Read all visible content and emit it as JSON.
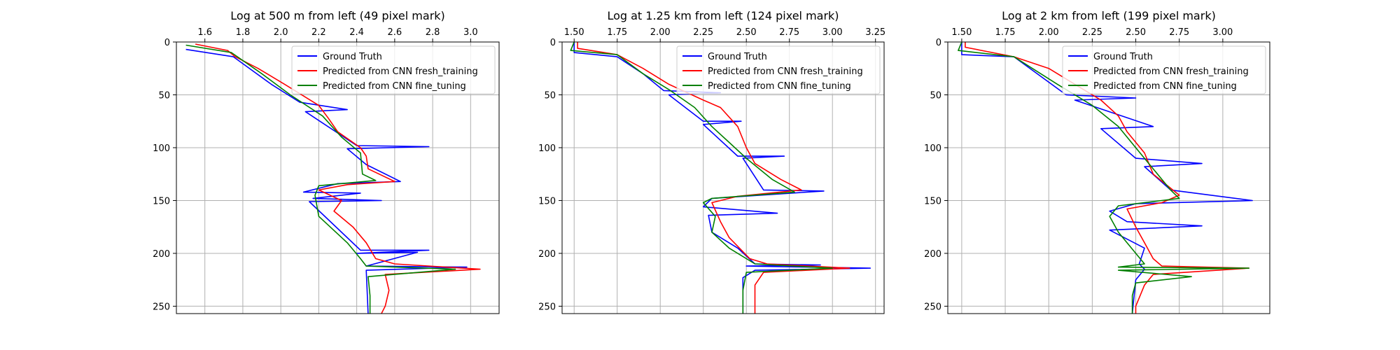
{
  "chart_data": [
    {
      "type": "line",
      "title": "Log at 500 m from left (49 pixel mark)",
      "x_axis_position": "top",
      "y_inverted": true,
      "xlim": [
        1.45,
        3.15
      ],
      "ylim": [
        0,
        257
      ],
      "xticks": [
        1.6,
        1.8,
        2.0,
        2.2,
        2.4,
        2.6,
        2.8,
        3.0
      ],
      "xtick_labels": [
        "1.6",
        "1.8",
        "2.0",
        "2.2",
        "2.4",
        "2.6",
        "2.8",
        "3.0"
      ],
      "yticks": [
        0,
        50,
        100,
        150,
        200,
        250
      ],
      "ytick_labels": [
        "0",
        "50",
        "100",
        "150",
        "200",
        "250"
      ],
      "grid": true,
      "legend_position": "top-right",
      "series": [
        {
          "name": "Ground Truth",
          "color": "#0000ff",
          "points": [
            [
              1.5,
              7
            ],
            [
              1.75,
              14
            ],
            [
              1.95,
              40
            ],
            [
              2.1,
              57
            ],
            [
              2.35,
              64
            ],
            [
              2.13,
              66
            ],
            [
              2.4,
              98
            ],
            [
              2.78,
              99
            ],
            [
              2.35,
              101
            ],
            [
              2.45,
              116
            ],
            [
              2.63,
              132
            ],
            [
              2.3,
              134
            ],
            [
              2.12,
              142
            ],
            [
              2.42,
              143
            ],
            [
              2.17,
              148
            ],
            [
              2.53,
              150
            ],
            [
              2.15,
              151
            ],
            [
              2.42,
              197
            ],
            [
              2.78,
              197
            ],
            [
              2.4,
              200
            ],
            [
              2.72,
              199
            ],
            [
              2.45,
              212
            ],
            [
              2.98,
              213
            ],
            [
              2.45,
              216
            ],
            [
              2.46,
              257
            ]
          ]
        },
        {
          "name": "Predicted from CNN fresh_training",
          "color": "#ff0000",
          "points": [
            [
              1.55,
              2
            ],
            [
              1.72,
              8
            ],
            [
              1.76,
              14
            ],
            [
              1.88,
              25
            ],
            [
              2.02,
              40
            ],
            [
              2.2,
              60
            ],
            [
              2.25,
              72
            ],
            [
              2.3,
              85
            ],
            [
              2.42,
              100
            ],
            [
              2.45,
              108
            ],
            [
              2.46,
              120
            ],
            [
              2.6,
              132
            ],
            [
              2.35,
              135
            ],
            [
              2.2,
              140
            ],
            [
              2.32,
              150
            ],
            [
              2.28,
              160
            ],
            [
              2.38,
              175
            ],
            [
              2.45,
              190
            ],
            [
              2.5,
              205
            ],
            [
              2.6,
              210
            ],
            [
              3.05,
              215
            ],
            [
              2.55,
              220
            ],
            [
              2.57,
              235
            ],
            [
              2.55,
              250
            ],
            [
              2.53,
              257
            ]
          ]
        },
        {
          "name": "Predicted from CNN fine_tuning",
          "color": "#008000",
          "points": [
            [
              1.5,
              3
            ],
            [
              1.74,
              10
            ],
            [
              1.9,
              30
            ],
            [
              2.05,
              50
            ],
            [
              2.22,
              70
            ],
            [
              2.32,
              90
            ],
            [
              2.42,
              105
            ],
            [
              2.43,
              125
            ],
            [
              2.5,
              131
            ],
            [
              2.2,
              136
            ],
            [
              2.18,
              145
            ],
            [
              2.2,
              165
            ],
            [
              2.35,
              190
            ],
            [
              2.42,
              205
            ],
            [
              2.45,
              212
            ],
            [
              2.92,
              215
            ],
            [
              2.46,
              222
            ],
            [
              2.47,
              240
            ],
            [
              2.47,
              257
            ]
          ]
        }
      ]
    },
    {
      "type": "line",
      "title": "Log at 1.25 km from left (124 pixel mark)",
      "x_axis_position": "top",
      "y_inverted": true,
      "xlim": [
        1.43,
        3.3
      ],
      "ylim": [
        0,
        257
      ],
      "xticks": [
        1.5,
        1.75,
        2.0,
        2.25,
        2.5,
        2.75,
        3.0,
        3.25
      ],
      "xtick_labels": [
        "1.50",
        "1.75",
        "2.00",
        "2.25",
        "2.50",
        "2.75",
        "3.00",
        "3.25"
      ],
      "yticks": [
        0,
        50,
        100,
        150,
        200,
        250
      ],
      "ytick_labels": [
        "0",
        "50",
        "100",
        "150",
        "200",
        "250"
      ],
      "grid": true,
      "legend_position": "top-right",
      "series": [
        {
          "name": "Ground Truth",
          "color": "#0000ff",
          "points": [
            [
              1.5,
              0
            ],
            [
              1.5,
              10
            ],
            [
              1.75,
              14
            ],
            [
              1.9,
              30
            ],
            [
              2.02,
              46
            ],
            [
              2.35,
              48
            ],
            [
              2.05,
              50
            ],
            [
              2.25,
              75
            ],
            [
              2.47,
              75
            ],
            [
              2.25,
              78
            ],
            [
              2.45,
              108
            ],
            [
              2.72,
              108
            ],
            [
              2.48,
              110
            ],
            [
              2.6,
              140
            ],
            [
              2.95,
              141
            ],
            [
              2.3,
              148
            ],
            [
              2.25,
              156
            ],
            [
              2.68,
              162
            ],
            [
              2.28,
              164
            ],
            [
              2.3,
              180
            ],
            [
              2.45,
              195
            ],
            [
              2.55,
              210
            ],
            [
              2.93,
              211
            ],
            [
              2.5,
              212
            ],
            [
              3.22,
              214
            ],
            [
              2.55,
              216
            ],
            [
              2.48,
              223
            ],
            [
              2.48,
              257
            ]
          ]
        },
        {
          "name": "Predicted from CNN fresh_training",
          "color": "#ff0000",
          "points": [
            [
              1.52,
              0
            ],
            [
              1.52,
              6
            ],
            [
              1.75,
              12
            ],
            [
              1.9,
              25
            ],
            [
              2.05,
              40
            ],
            [
              2.25,
              55
            ],
            [
              2.35,
              62
            ],
            [
              2.45,
              80
            ],
            [
              2.5,
              100
            ],
            [
              2.55,
              115
            ],
            [
              2.7,
              130
            ],
            [
              2.82,
              140
            ],
            [
              2.45,
              146
            ],
            [
              2.3,
              152
            ],
            [
              2.35,
              170
            ],
            [
              2.4,
              185
            ],
            [
              2.52,
              205
            ],
            [
              2.62,
              210
            ],
            [
              3.1,
              214
            ],
            [
              2.6,
              218
            ],
            [
              2.55,
              230
            ],
            [
              2.55,
              250
            ],
            [
              2.55,
              257
            ]
          ]
        },
        {
          "name": "Predicted from CNN fine_tuning",
          "color": "#008000",
          "points": [
            [
              1.5,
              0
            ],
            [
              1.48,
              8
            ],
            [
              1.75,
              12
            ],
            [
              1.9,
              30
            ],
            [
              2.05,
              45
            ],
            [
              2.2,
              62
            ],
            [
              2.3,
              80
            ],
            [
              2.4,
              95
            ],
            [
              2.5,
              110
            ],
            [
              2.65,
              130
            ],
            [
              2.78,
              142
            ],
            [
              2.3,
              148
            ],
            [
              2.25,
              152
            ],
            [
              2.32,
              165
            ],
            [
              2.3,
              180
            ],
            [
              2.4,
              195
            ],
            [
              2.55,
              210
            ],
            [
              3.0,
              214
            ],
            [
              2.5,
              218
            ],
            [
              2.48,
              235
            ],
            [
              2.48,
              257
            ]
          ]
        }
      ]
    },
    {
      "type": "line",
      "title": "Log at 2 km from left (199 pixel mark)",
      "x_axis_position": "top",
      "y_inverted": true,
      "xlim": [
        1.42,
        3.27
      ],
      "ylim": [
        0,
        257
      ],
      "xticks": [
        1.5,
        1.75,
        2.0,
        2.25,
        2.5,
        2.75,
        3.0
      ],
      "xtick_labels": [
        "1.50",
        "1.75",
        "2.00",
        "2.25",
        "2.50",
        "2.75",
        "3.00"
      ],
      "yticks": [
        0,
        50,
        100,
        150,
        200,
        250
      ],
      "ytick_labels": [
        "0",
        "50",
        "100",
        "150",
        "200",
        "250"
      ],
      "grid": true,
      "legend_position": "top-right",
      "series": [
        {
          "name": "Ground Truth",
          "color": "#0000ff",
          "points": [
            [
              1.5,
              0
            ],
            [
              1.5,
              12
            ],
            [
              1.8,
              14
            ],
            [
              2.1,
              50
            ],
            [
              2.5,
              53
            ],
            [
              2.15,
              55
            ],
            [
              2.6,
              80
            ],
            [
              2.3,
              82
            ],
            [
              2.5,
              110
            ],
            [
              2.88,
              115
            ],
            [
              2.55,
              118
            ],
            [
              2.7,
              140
            ],
            [
              3.17,
              150
            ],
            [
              2.5,
              153
            ],
            [
              2.35,
              160
            ],
            [
              2.45,
              170
            ],
            [
              2.88,
              174
            ],
            [
              2.35,
              178
            ],
            [
              2.55,
              195
            ],
            [
              2.52,
              210
            ],
            [
              2.55,
              215
            ],
            [
              2.5,
              225
            ],
            [
              2.48,
              257
            ]
          ]
        },
        {
          "name": "Predicted from CNN fresh_training",
          "color": "#ff0000",
          "points": [
            [
              1.52,
              0
            ],
            [
              1.52,
              5
            ],
            [
              1.8,
              14
            ],
            [
              2.0,
              25
            ],
            [
              2.15,
              40
            ],
            [
              2.3,
              55
            ],
            [
              2.4,
              70
            ],
            [
              2.45,
              85
            ],
            [
              2.55,
              105
            ],
            [
              2.6,
              125
            ],
            [
              2.75,
              145
            ],
            [
              2.65,
              152
            ],
            [
              2.45,
              158
            ],
            [
              2.5,
              175
            ],
            [
              2.55,
              190
            ],
            [
              2.6,
              205
            ],
            [
              2.65,
              212
            ],
            [
              3.15,
              214
            ],
            [
              2.6,
              220
            ],
            [
              2.55,
              230
            ],
            [
              2.5,
              250
            ],
            [
              2.5,
              257
            ]
          ]
        },
        {
          "name": "Predicted from CNN fine_tuning",
          "color": "#008000",
          "points": [
            [
              1.5,
              0
            ],
            [
              1.48,
              8
            ],
            [
              1.8,
              14
            ],
            [
              2.05,
              40
            ],
            [
              2.25,
              60
            ],
            [
              2.4,
              80
            ],
            [
              2.5,
              100
            ],
            [
              2.6,
              120
            ],
            [
              2.7,
              140
            ],
            [
              2.75,
              148
            ],
            [
              2.4,
              155
            ],
            [
              2.35,
              165
            ],
            [
              2.4,
              180
            ],
            [
              2.5,
              200
            ],
            [
              2.55,
              210
            ],
            [
              2.4,
              213
            ],
            [
              3.15,
              214
            ],
            [
              2.4,
              216
            ],
            [
              2.82,
              222
            ],
            [
              2.5,
              228
            ],
            [
              2.48,
              240
            ],
            [
              2.48,
              257
            ]
          ]
        }
      ]
    }
  ]
}
